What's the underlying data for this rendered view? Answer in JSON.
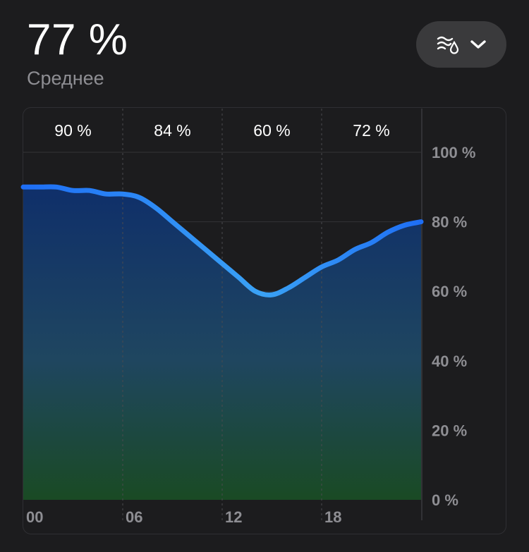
{
  "header": {
    "value": "77 %",
    "label": "Среднее"
  },
  "metric_selector": {
    "icon": "humidity-icon",
    "chevron": "chevron-down-icon"
  },
  "colors": {
    "background": "#1c1c1e",
    "line_start": "#1e6ef5",
    "line_end": "#3aa2f5",
    "fill_top": "#0f2f6a",
    "fill_bottom": "#1a4a24",
    "grid": "#3a3a3e",
    "axis_text": "#8e8e93"
  },
  "chart_data": {
    "type": "area",
    "x": [
      0,
      1,
      2,
      3,
      4,
      5,
      6,
      7,
      8,
      9,
      10,
      11,
      12,
      13,
      14,
      15,
      16,
      17,
      18,
      19,
      20,
      21,
      22,
      23,
      24
    ],
    "values": [
      90,
      90,
      90,
      89,
      89,
      88,
      88,
      87,
      84,
      80,
      76,
      72,
      68,
      64,
      60,
      59,
      61,
      64,
      67,
      69,
      72,
      74,
      77,
      79,
      80
    ],
    "xlim": [
      0,
      24
    ],
    "ylim": [
      0,
      100
    ],
    "x_ticks": [
      "00",
      "06",
      "12",
      "18"
    ],
    "x_tick_values": [
      0,
      6,
      12,
      18
    ],
    "y_ticks": [
      "0 %",
      "20 %",
      "40 %",
      "60 %",
      "80 %",
      "100 %"
    ],
    "y_tick_values": [
      0,
      20,
      40,
      60,
      80,
      100
    ],
    "period_labels": [
      "90 %",
      "84 %",
      "60 %",
      "72 %"
    ],
    "y_axis_position": "right",
    "grid": true
  }
}
